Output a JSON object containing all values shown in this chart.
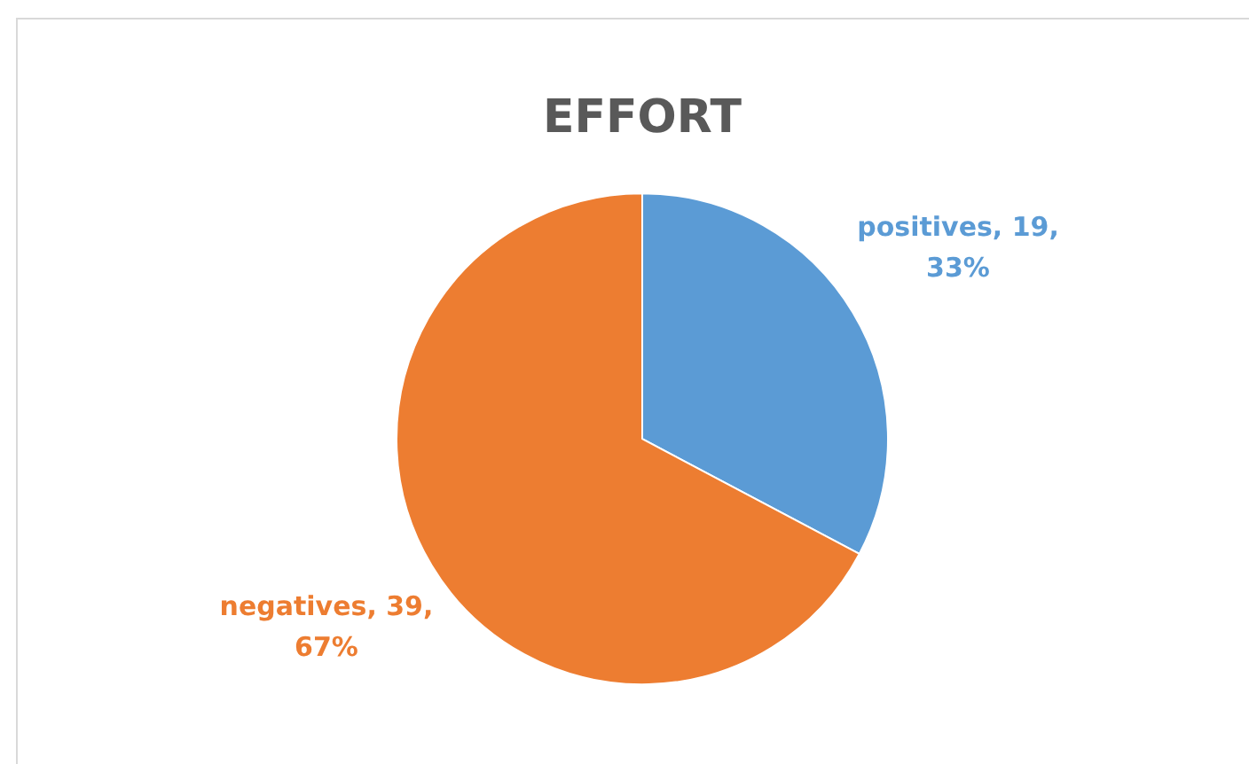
{
  "chart_data": {
    "type": "pie",
    "title": "EFFORT",
    "categories": [
      "positives",
      "negatives"
    ],
    "values": [
      19,
      39
    ],
    "colors": [
      "#5b9bd5",
      "#ed7d31"
    ],
    "value_labels": [
      "19, 33%",
      "39, 67%"
    ],
    "legend": false
  }
}
